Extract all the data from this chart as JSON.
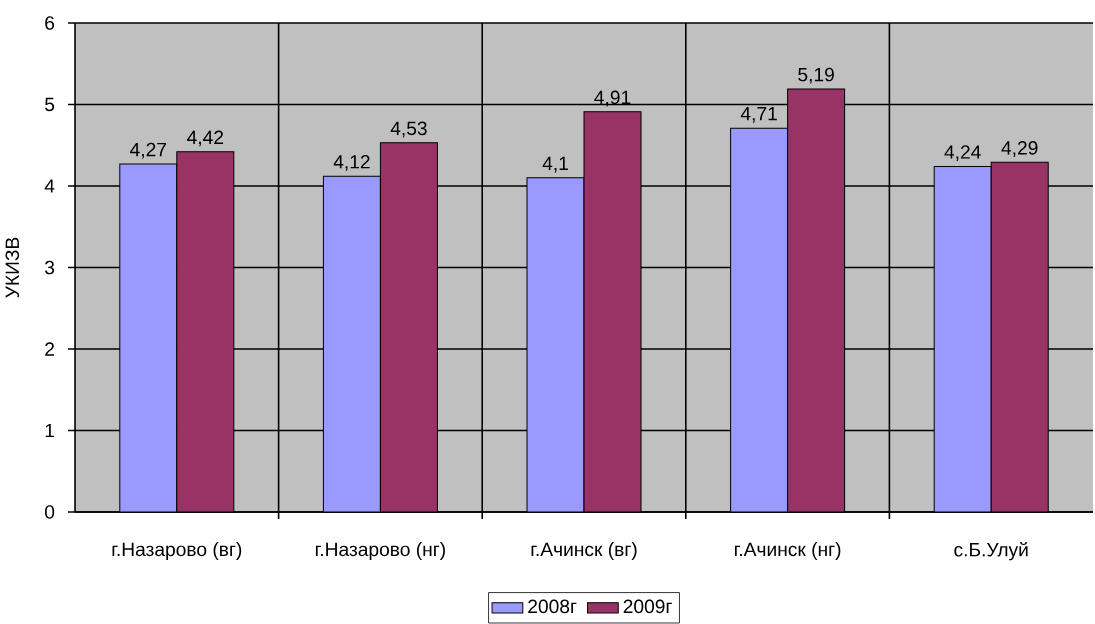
{
  "chart_data": {
    "type": "bar",
    "ylabel": "УКИЗВ",
    "categories": [
      "г.Назарово (вг)",
      "г.Назарово (нг)",
      "г.Ачинск (вг)",
      "г.Ачинск (нг)",
      "с.Б.Улуй"
    ],
    "series": [
      {
        "name": "2008г",
        "color": "#9999ff",
        "values": [
          4.27,
          4.12,
          4.1,
          4.71,
          4.24
        ],
        "value_labels": [
          "4,27",
          "4,12",
          "4,1",
          "4,71",
          "4,24"
        ]
      },
      {
        "name": "2009г",
        "color": "#993366",
        "values": [
          4.42,
          4.53,
          4.91,
          5.19,
          4.29
        ],
        "value_labels": [
          "4,42",
          "4,53",
          "4,91",
          "5,19",
          "4,29"
        ]
      }
    ],
    "ylim": [
      0,
      6
    ],
    "yticks": [
      0,
      1,
      2,
      3,
      4,
      5,
      6
    ],
    "grid": true,
    "legend": "bottom"
  }
}
